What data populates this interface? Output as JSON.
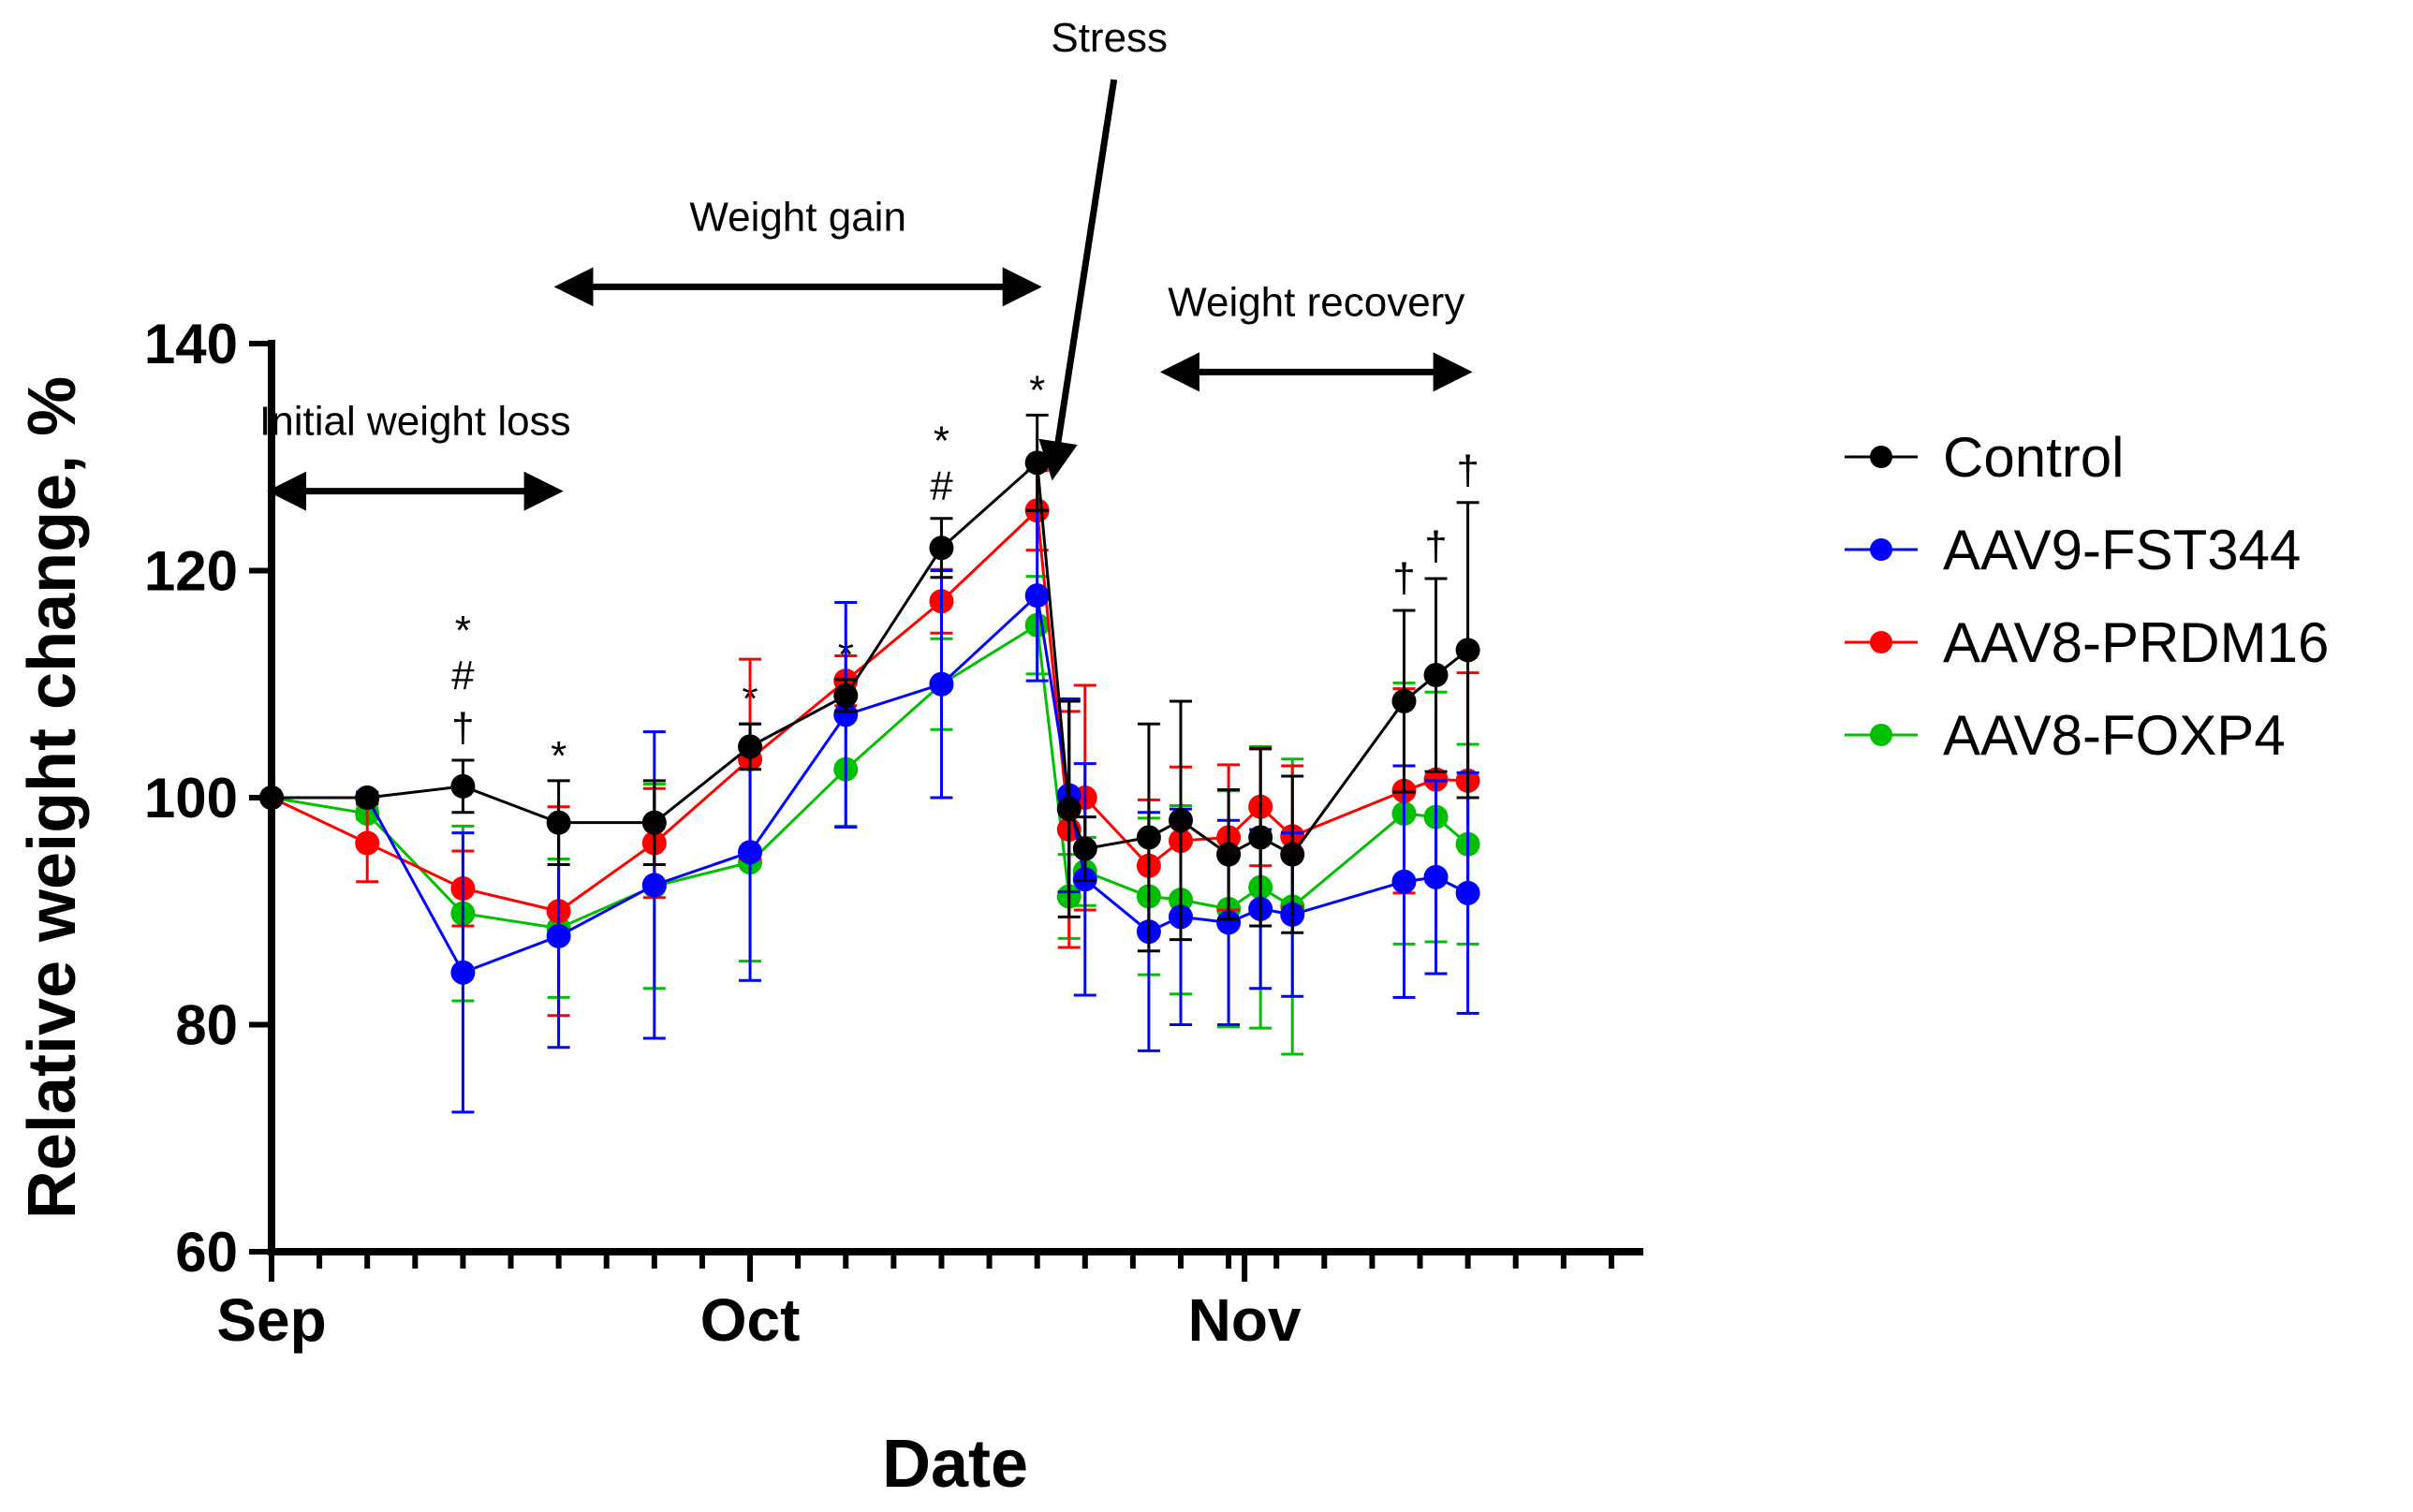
{
  "chart_data": {
    "type": "line",
    "xlabel": "Date",
    "ylabel": "Relative weight change, %",
    "ylim": [
      60,
      140
    ],
    "yticks": [
      "60",
      "80",
      "100",
      "120",
      "140"
    ],
    "xlim": [
      "Sep 1",
      "Nov 26"
    ],
    "month_labels": [
      {
        "label": "Sep",
        "date": "Sep 1"
      },
      {
        "label": "Oct",
        "date": "Oct 1"
      },
      {
        "label": "Nov",
        "date": "Nov 1"
      }
    ],
    "grid": false,
    "legend_position": "right",
    "x": [
      "Sep 1",
      "Sep 7",
      "Sep 13",
      "Sep 19",
      "Sep 25",
      "Oct 1",
      "Oct 7",
      "Oct 13",
      "Oct 19",
      "Oct 21",
      "Oct 22",
      "Oct 26",
      "Oct 28",
      "Oct 31",
      "Nov 2",
      "Nov 4",
      "Nov 11",
      "Nov 13",
      "Nov 15"
    ],
    "series": [
      {
        "name": "Control",
        "color": "#000000",
        "values": [
          100,
          100,
          101,
          97.8,
          97.8,
          104.5,
          109,
          122,
          129.5,
          99,
          95.5,
          96.5,
          98,
          95,
          96.5,
          95,
          108.5,
          110.8,
          113
        ],
        "errors": [
          0,
          0.4,
          2.3,
          3.7,
          3.7,
          2,
          1.4,
          2.6,
          4.2,
          9.5,
          2.8,
          10,
          10.5,
          5.7,
          7.8,
          6.9,
          8,
          8.5,
          13
        ]
      },
      {
        "name": "AAV9-FST344",
        "color": "#0000ff",
        "values": [
          100,
          100,
          84.6,
          87.8,
          92.3,
          95.2,
          107.3,
          110,
          117.8,
          100.2,
          92.8,
          88.2,
          89.5,
          89,
          90.2,
          89.7,
          92.6,
          93,
          91.6
        ],
        "errors": [
          0,
          0.5,
          12.3,
          9.8,
          13.5,
          11.3,
          9.9,
          10,
          7.5,
          8.5,
          10.2,
          10.5,
          9.5,
          9,
          7,
          7.2,
          10.2,
          8.5,
          10.6
        ]
      },
      {
        "name": "AAV8-PRDM16",
        "color": "#ff0000",
        "values": [
          100,
          96,
          92,
          90,
          96,
          103.4,
          110.3,
          117.3,
          125.3,
          97.2,
          100,
          94,
          96.2,
          96.5,
          99.2,
          96.6,
          100.6,
          101.6,
          101.5
        ],
        "errors": [
          0,
          3.4,
          3.3,
          9.2,
          4.8,
          8.8,
          2.2,
          2.8,
          3.5,
          10.4,
          9.9,
          5.8,
          6.5,
          6.4,
          5.2,
          6.2,
          9,
          9,
          9.5
        ]
      },
      {
        "name": "AAV8-FOXP4",
        "color": "#00c000",
        "values": [
          100,
          98.6,
          89.8,
          88.5,
          92.2,
          94.3,
          102.5,
          110,
          115.2,
          91.3,
          93.5,
          91.3,
          91,
          90.2,
          92.1,
          90.4,
          98.6,
          98.3,
          95.9
        ],
        "errors": [
          0,
          0.5,
          7.7,
          6.1,
          9,
          8.7,
          5,
          4,
          4.3,
          3.7,
          3,
          6.9,
          8.3,
          10.4,
          12.4,
          13,
          11.5,
          11,
          8.8
        ]
      }
    ],
    "annotations": [
      {
        "text": "Initial weight loss",
        "arrow_from": "Sep 1",
        "arrow_to": "Sep 19",
        "y": 127
      },
      {
        "text": "Weight gain",
        "arrow_from": "Sep 19",
        "arrow_to": "Oct 19",
        "y": 145
      },
      {
        "text": "Weight recovery",
        "arrow_from": "Oct 27",
        "arrow_to": "Nov 15",
        "y": 137.5
      },
      {
        "text": "Stress",
        "at": "Oct 20",
        "y": 128.5
      }
    ],
    "significance": [
      {
        "x": "Sep 13",
        "symbols": [
          "*",
          "#",
          "†"
        ]
      },
      {
        "x": "Sep 19",
        "symbols": [
          "*"
        ]
      },
      {
        "x": "Oct 1",
        "symbols": [
          "*"
        ]
      },
      {
        "x": "Oct 7",
        "symbols": [
          "*"
        ]
      },
      {
        "x": "Oct 13",
        "symbols": [
          "*",
          "#"
        ]
      },
      {
        "x": "Oct 19",
        "symbols": [
          "*"
        ]
      },
      {
        "x": "Nov 11",
        "symbols": [
          "†"
        ]
      },
      {
        "x": "Nov 13",
        "symbols": [
          "†"
        ]
      },
      {
        "x": "Nov 15",
        "symbols": [
          "†"
        ]
      }
    ]
  }
}
